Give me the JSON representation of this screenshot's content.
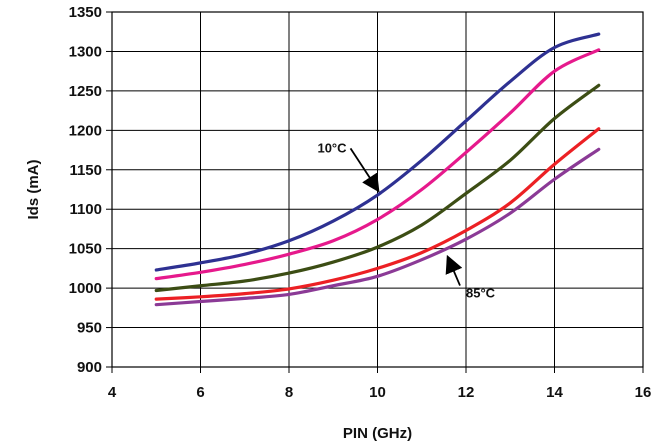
{
  "chart_data": {
    "type": "line",
    "xlabel": "PIN (GHz)",
    "ylabel": "Ids (mA)",
    "xlim": [
      4,
      16
    ],
    "ylim": [
      900,
      1350
    ],
    "xticks": [
      "4",
      "6",
      "8",
      "10",
      "12",
      "14",
      "16"
    ],
    "yticks": [
      "900",
      "950",
      "1000",
      "1050",
      "1100",
      "1150",
      "1200",
      "1250",
      "1300",
      "1350"
    ],
    "grid": true,
    "legend": "none",
    "x": [
      5,
      6,
      7,
      8,
      9,
      10,
      11,
      12,
      13,
      14,
      15
    ],
    "series": [
      {
        "color": "#2e3192",
        "values": [
          1023,
          1032,
          1043,
          1060,
          1085,
          1118,
          1162,
          1212,
          1262,
          1305,
          1322
        ]
      },
      {
        "color": "#e6198c",
        "values": [
          1012,
          1020,
          1030,
          1043,
          1060,
          1087,
          1125,
          1172,
          1222,
          1275,
          1302
        ]
      },
      {
        "color": "#3c4d14",
        "values": [
          997,
          1003,
          1009,
          1019,
          1033,
          1052,
          1080,
          1120,
          1162,
          1215,
          1257
        ]
      },
      {
        "color": "#ec2024",
        "values": [
          986,
          989,
          993,
          999,
          1010,
          1025,
          1045,
          1073,
          1108,
          1157,
          1202
        ]
      },
      {
        "color": "#8b3a96",
        "values": [
          979,
          983,
          987,
          992,
          1003,
          1015,
          1036,
          1062,
          1095,
          1138,
          1176
        ]
      }
    ],
    "annotations": [
      {
        "text": "10°C",
        "x": 9.3,
        "y": 1172,
        "arrow_to": [
          10.0,
          1125
        ],
        "anchor": "end"
      },
      {
        "text": "85°C",
        "x": 12.0,
        "y": 988,
        "arrow_to": [
          11.6,
          1038
        ],
        "anchor": "start"
      }
    ]
  }
}
